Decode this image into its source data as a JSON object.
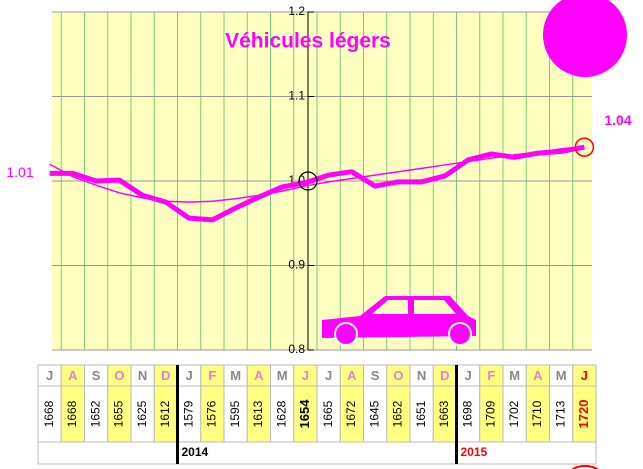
{
  "chart_data": {
    "type": "line",
    "title": "Véhicules légers",
    "categories": [
      "J",
      "A",
      "S",
      "O",
      "N",
      "D",
      "J",
      "F",
      "M",
      "A",
      "M",
      "J",
      "J",
      "A",
      "S",
      "O",
      "N",
      "D",
      "J",
      "F",
      "M",
      "A",
      "M",
      "J"
    ],
    "series": [
      {
        "color": "#ff00ff",
        "values": [
          1.009,
          1.009,
          1.0,
          1.001,
          0.983,
          0.975,
          0.956,
          0.954,
          0.968,
          0.981,
          0.993,
          0.998,
          1.007,
          1.011,
          0.994,
          0.999,
          0.999,
          1.006,
          1.025,
          1.032,
          1.028,
          1.033,
          1.035,
          1.04
        ],
        "value_labels": [
          "1.01",
          null,
          null,
          null,
          null,
          null,
          null,
          null,
          null,
          null,
          null,
          null,
          null,
          null,
          null,
          null,
          null,
          null,
          null,
          null,
          null,
          null,
          null,
          "1.04"
        ]
      },
      {
        "color": "#ff00ff",
        "values": [
          1.02,
          1.005,
          0.995,
          0.986,
          0.98,
          0.976,
          0.975,
          0.976,
          0.979,
          0.983,
          0.988,
          0.994,
          0.999,
          1.003,
          1.007,
          1.011,
          1.015,
          1.019,
          1.023,
          1.027,
          1.031,
          1.034,
          1.038,
          1.041
        ]
      }
    ],
    "ylim": [
      0.8,
      1.2
    ],
    "yticks": [
      0.8,
      0.9,
      {
        "value": 1.0,
        "label": "1.0"
      },
      1.1,
      1.2
    ],
    "grid": true,
    "table": {
      "values": [
        1668,
        1668,
        1652,
        1655,
        1625,
        1612,
        1579,
        1576,
        1595,
        1613,
        1628,
        1654,
        1665,
        1672,
        1645,
        1652,
        1651,
        1663,
        1698,
        1709,
        1702,
        1710,
        1713,
        1720
      ]
    },
    "years": [
      "2014",
      "2015"
    ]
  }
}
